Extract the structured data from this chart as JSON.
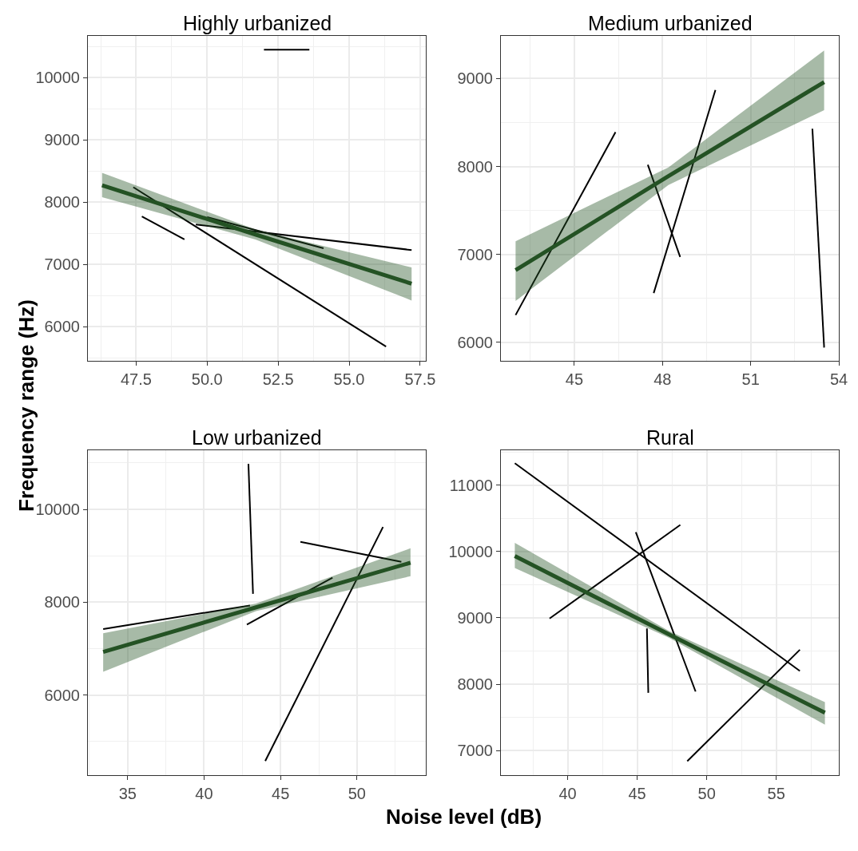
{
  "chart_data": [
    {
      "type": "line",
      "title": "Highly urbanized",
      "ylabel": "Frequency range (Hz)",
      "grid": true,
      "line_style": "solid",
      "xlim": [
        45.8,
        57.7
      ],
      "ylim": [
        5445,
        10670
      ],
      "xticks": [
        47.5,
        {
          "value": 50,
          "label": "50.0"
        },
        52.5,
        {
          "value": 55,
          "label": "55.0"
        },
        57.5
      ],
      "yticks": [
        6000,
        7000,
        8000,
        9000,
        10000
      ],
      "series": [
        {
          "color": "#000000",
          "x": [
            52.0,
            53.6
          ],
          "values": [
            10450,
            10450
          ]
        },
        {
          "color": "#000000",
          "x": [
            47.4,
            56.3
          ],
          "values": [
            8240,
            5680
          ]
        },
        {
          "color": "#000000",
          "x": [
            47.7,
            49.2
          ],
          "values": [
            7770,
            7400
          ]
        },
        {
          "color": "#000000",
          "x": [
            49.6,
            57.2
          ],
          "values": [
            7640,
            7230
          ]
        },
        {
          "color": "#000000",
          "x": [
            50.0,
            54.1
          ],
          "values": [
            7760,
            7260
          ]
        },
        {
          "color": "#245224",
          "x": [
            46.3,
            51.7,
            57.2
          ],
          "values": [
            8270,
            7480,
            6690
          ],
          "lower": [
            8080,
            7400,
            6420
          ],
          "upper": [
            8470,
            7560,
            6950
          ]
        }
      ]
    },
    {
      "type": "line",
      "title": "Medium urbanized",
      "grid": true,
      "line_style": "solid",
      "xlim": [
        42.5,
        54
      ],
      "ylim": [
        5785,
        9485
      ],
      "xticks": [
        45,
        48,
        51,
        54
      ],
      "yticks": [
        6000,
        7000,
        8000,
        9000
      ],
      "series": [
        {
          "color": "#000000",
          "x": [
            43.0,
            46.4
          ],
          "values": [
            6310,
            8390
          ]
        },
        {
          "color": "#000000",
          "x": [
            47.5,
            48.6
          ],
          "values": [
            8020,
            6970
          ]
        },
        {
          "color": "#000000",
          "x": [
            47.7,
            49.8
          ],
          "values": [
            6560,
            8870
          ]
        },
        {
          "color": "#000000",
          "x": [
            53.1,
            53.5
          ],
          "values": [
            8430,
            5940
          ]
        },
        {
          "color": "#245224",
          "x": [
            43.0,
            48.2,
            53.5
          ],
          "values": [
            6820,
            7890,
            8960
          ],
          "lower": [
            6470,
            7790,
            8640
          ],
          "upper": [
            7150,
            7990,
            9320
          ]
        }
      ]
    },
    {
      "type": "line",
      "title": "Low urbanized",
      "xlabel": "Noise level (dB)",
      "grid": true,
      "line_style": "solid",
      "xlim": [
        32.4,
        54.5
      ],
      "ylim": [
        4275,
        11280
      ],
      "xticks": [
        35,
        40,
        45,
        50
      ],
      "yticks": [
        6000,
        8000,
        10000
      ],
      "series": [
        {
          "color": "#000000",
          "x": [
            33.4,
            43.0
          ],
          "values": [
            7420,
            7930
          ]
        },
        {
          "color": "#000000",
          "x": [
            42.9,
            43.2
          ],
          "values": [
            10980,
            8180
          ]
        },
        {
          "color": "#000000",
          "x": [
            42.8,
            48.4
          ],
          "values": [
            7520,
            8530
          ]
        },
        {
          "color": "#000000",
          "x": [
            44.0,
            51.7
          ],
          "values": [
            4580,
            9620
          ]
        },
        {
          "color": "#000000",
          "x": [
            46.3,
            52.9
          ],
          "values": [
            9300,
            8870
          ]
        },
        {
          "color": "#245224",
          "x": [
            33.4,
            43.4,
            53.5
          ],
          "values": [
            6930,
            7890,
            8850
          ],
          "lower": [
            6500,
            7810,
            8560
          ],
          "upper": [
            7330,
            7970,
            9160
          ]
        }
      ]
    },
    {
      "type": "line",
      "title": "Rural",
      "grid": true,
      "line_style": "solid",
      "xlim": [
        35.2,
        59.5
      ],
      "ylim": [
        6630,
        11530
      ],
      "xticks": [
        40,
        45,
        50,
        55
      ],
      "yticks": [
        7000,
        8000,
        9000,
        10000,
        11000
      ],
      "series": [
        {
          "color": "#000000",
          "x": [
            36.2,
            56.7
          ],
          "values": [
            11330,
            8200
          ]
        },
        {
          "color": "#000000",
          "x": [
            38.7,
            48.1
          ],
          "values": [
            8990,
            10400
          ]
        },
        {
          "color": "#000000",
          "x": [
            44.9,
            49.2
          ],
          "values": [
            10290,
            7890
          ]
        },
        {
          "color": "#000000",
          "x": [
            45.7,
            45.8
          ],
          "values": [
            8840,
            7870
          ]
        },
        {
          "color": "#000000",
          "x": [
            48.6,
            56.7
          ],
          "values": [
            6840,
            8520
          ]
        },
        {
          "color": "#245224",
          "x": [
            36.2,
            47.3,
            58.5
          ],
          "values": [
            9930,
            8750,
            7570
          ],
          "lower": [
            9750,
            8700,
            7390
          ],
          "upper": [
            10130,
            8800,
            7730
          ]
        }
      ]
    }
  ]
}
